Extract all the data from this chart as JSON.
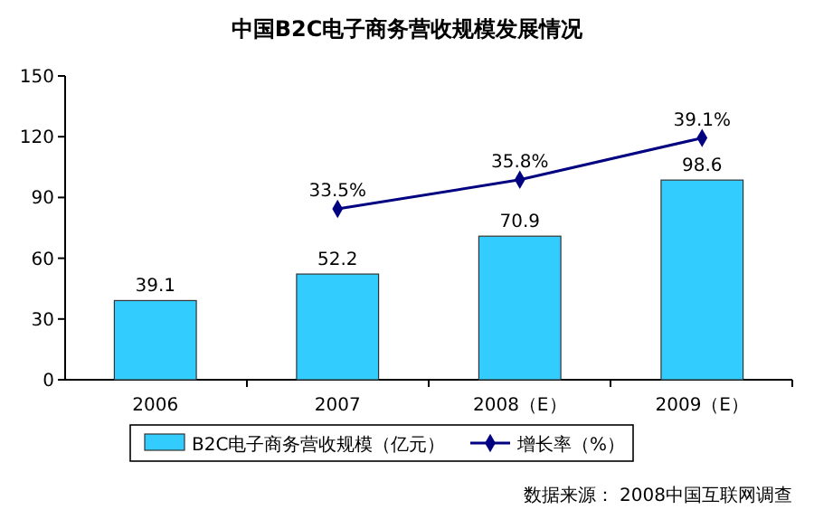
{
  "chart_data": {
    "type": "bar",
    "title": "中国B2C电子商务营收规模发展情况",
    "categories": [
      "2006",
      "2007",
      "2008（E）",
      "2009（E）"
    ],
    "series": [
      {
        "name": "B2C电子商务营收规模（亿元）",
        "color": "#33ccff",
        "values": [
          39.1,
          52.2,
          70.9,
          98.6
        ],
        "value_labels": [
          "39.1",
          "52.2",
          "70.9",
          "98.6"
        ]
      },
      {
        "name": "增长率（%）",
        "type": "line",
        "axis": "y2",
        "color": "#000080",
        "marker": "diamond",
        "values": [
          null,
          33.5,
          35.8,
          39.1
        ],
        "value_labels": [
          null,
          "33.5%",
          "35.8%",
          "39.1%"
        ]
      }
    ],
    "ylim": [
      0,
      150
    ],
    "yticks": [
      0,
      30,
      60,
      90,
      120,
      150
    ],
    "y2lim": [
      20,
      44
    ],
    "legend": "bottom",
    "annotations": [
      "数据来源： 2008中国互联网调查"
    ]
  }
}
